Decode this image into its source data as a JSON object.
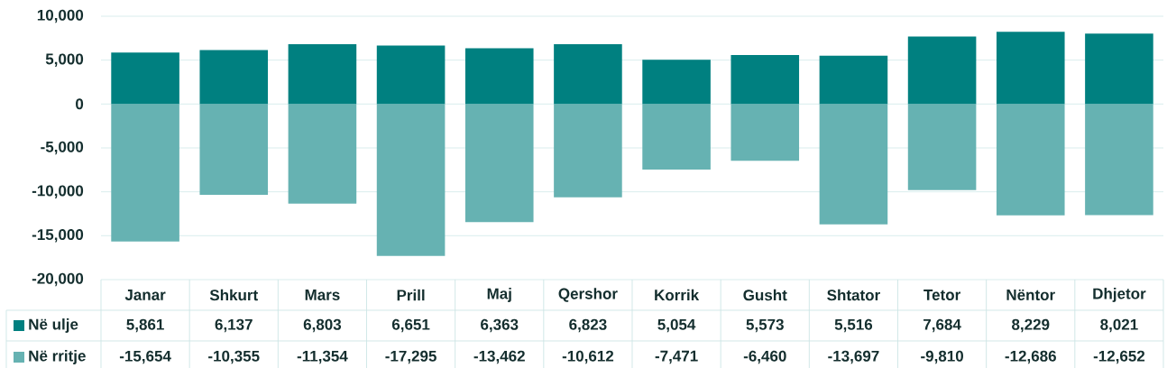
{
  "chart_data": {
    "type": "bar",
    "stacked": true,
    "categories": [
      "Janar",
      "Shkurt",
      "Mars",
      "Prill",
      "Maj",
      "Qershor",
      "Korrik",
      "Gusht",
      "Shtator",
      "Tetor",
      "Nëntor",
      "Dhjetor"
    ],
    "series": [
      {
        "name": "Në ulje",
        "color": "#008080",
        "values": [
          5861,
          6137,
          6803,
          6651,
          6363,
          6823,
          5054,
          5573,
          5516,
          7684,
          8229,
          8021
        ],
        "value_labels": [
          "5,861",
          "6,137",
          "6,803",
          "6,651",
          "6,363",
          "6,823",
          "5,054",
          "5,573",
          "5,516",
          "7,684",
          "8,229",
          "8,021"
        ]
      },
      {
        "name": "Në rritje",
        "color": "#66b2b2",
        "values": [
          -15654,
          -10355,
          -11354,
          -17295,
          -13462,
          -10612,
          -7471,
          -6460,
          -13697,
          -9810,
          -12686,
          -12652
        ],
        "value_labels": [
          "-15,654",
          "-10,355",
          "-11,354",
          "-17,295",
          "-13,462",
          "-10,612",
          "-7,471",
          "-6,460",
          "-13,697",
          "-9,810",
          "-12,686",
          "-12,652"
        ]
      }
    ],
    "ylim": [
      -20000,
      10000
    ],
    "yticks": [
      {
        "value": -20000,
        "label": "-20,000"
      },
      {
        "value": -15000,
        "label": "-15,000"
      },
      {
        "value": -10000,
        "label": "-10,000"
      },
      {
        "value": -5000,
        "label": "-5,000"
      },
      0,
      {
        "value": 5000,
        "label": "5,000"
      },
      {
        "value": 10000,
        "label": "10,000"
      }
    ],
    "grid": "y",
    "legend": "bottom"
  }
}
